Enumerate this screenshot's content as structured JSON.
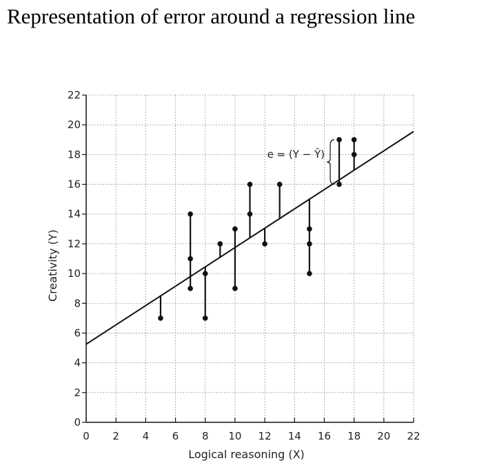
{
  "title": "Representation of error around a regression line",
  "chart_data": {
    "type": "scatter",
    "xlabel": "Logical reasoning (X)",
    "ylabel": "Creativity (Y)",
    "xlim": [
      0,
      22
    ],
    "ylim": [
      0,
      22
    ],
    "xticks": [
      "0",
      "2",
      "4",
      "6",
      "8",
      "10",
      "12",
      "14",
      "16",
      "18",
      "20",
      "22"
    ],
    "yticks": [
      "0",
      "2",
      "4",
      "6",
      "8",
      "10",
      "12",
      "14",
      "16",
      "18",
      "20",
      "22"
    ],
    "grid": true,
    "points": [
      {
        "x": 5,
        "y": 7
      },
      {
        "x": 7,
        "y": 9
      },
      {
        "x": 7,
        "y": 11
      },
      {
        "x": 7,
        "y": 14
      },
      {
        "x": 8,
        "y": 7
      },
      {
        "x": 8,
        "y": 10
      },
      {
        "x": 9,
        "y": 12
      },
      {
        "x": 10,
        "y": 9
      },
      {
        "x": 10,
        "y": 13
      },
      {
        "x": 11,
        "y": 14
      },
      {
        "x": 11,
        "y": 16
      },
      {
        "x": 12,
        "y": 12
      },
      {
        "x": 13,
        "y": 16
      },
      {
        "x": 15,
        "y": 10
      },
      {
        "x": 15,
        "y": 12
      },
      {
        "x": 15,
        "y": 13
      },
      {
        "x": 17,
        "y": 16
      },
      {
        "x": 17,
        "y": 19
      },
      {
        "x": 18,
        "y": 18
      },
      {
        "x": 18,
        "y": 19
      }
    ],
    "regression_line": {
      "intercept": 5.25,
      "slope": 0.65
    },
    "annotation": "e = (Y − Ŷ)"
  }
}
